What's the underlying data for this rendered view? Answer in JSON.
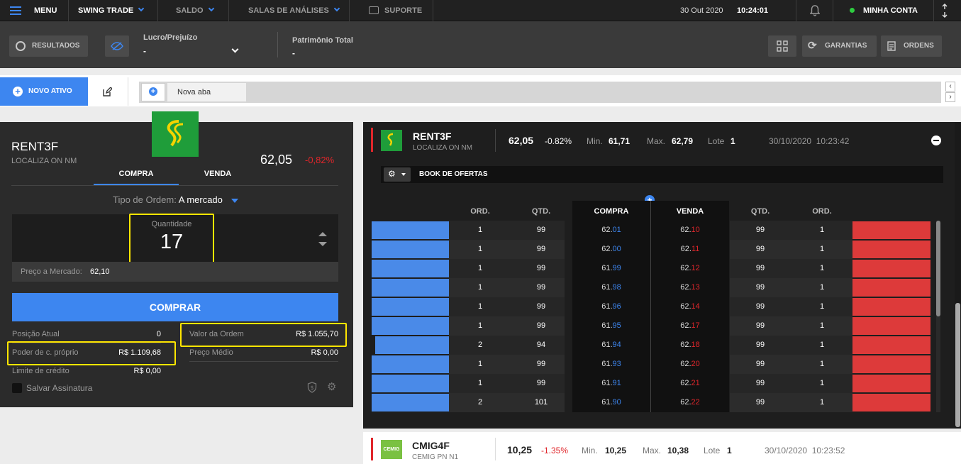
{
  "topbar": {
    "menu_label": "MENU",
    "mode_label": "SWING TRADE",
    "saldo_label": "SALDO",
    "salas_label": "SALAS DE ANÁLISES",
    "suporte_label": "SUPORTE",
    "date": "30 Out 2020",
    "time": "10:24:01",
    "account_label": "MINHA CONTA",
    "status_color": "#2ecc40"
  },
  "bar2": {
    "resultados_label": "RESULTADOS",
    "lucro_label": "Lucro/Prejuízo",
    "lucro_value": "-",
    "patrimonio_label": "Patrimônio Total",
    "patrimonio_value": "-",
    "garantias_label": "GARANTIAS",
    "ordens_label": "ORDENS"
  },
  "tabs": {
    "novo_ativo_label": "NOVO ATIVO",
    "tab_label": "Nova aba"
  },
  "order": {
    "ticker": "RENT3F",
    "company": "LOCALIZA ON NM",
    "price": "62,05",
    "change": "-0,82%",
    "tab_buy": "COMPRA",
    "tab_sell": "VENDA",
    "order_type_label": "Tipo de Ordem:",
    "order_type_value": "A mercado",
    "quantity_label": "Quantidade",
    "quantity_value": "17",
    "market_price_label": "Preço a Mercado:",
    "market_price_value": "62,10",
    "buy_button": "COMPRAR",
    "posicao_label": "Posição Atual",
    "posicao_value": "0",
    "valor_label": "Valor da Ordem",
    "valor_value": "R$ 1.055,70",
    "poder_label": "Poder de c. próprio",
    "poder_value": "R$ 1.109,68",
    "preco_medio_label": "Preço Médio",
    "preco_medio_value": "R$ 0,00",
    "limite_label": "Limite de crédito",
    "limite_value": "R$ 0,00",
    "salvar_label": "Salvar Assinatura"
  },
  "book": {
    "ticker": "RENT3F",
    "company": "LOCALIZA ON NM",
    "price": "62,05",
    "change": "-0.82%",
    "min_label": "Min.",
    "min_value": "61,71",
    "max_label": "Max.",
    "max_value": "62,79",
    "lote_label": "Lote",
    "lote_value": "1",
    "datetime": "30/10/2020  10:23:42",
    "title": "BOOK DE OFERTAS",
    "headers": {
      "ord_l": "ORD.",
      "qtd_l": "QTD.",
      "compra": "COMPRA",
      "venda": "VENDA",
      "qtd_r": "QTD.",
      "ord_r": "ORD."
    },
    "rows": [
      {
        "ord_l": "1",
        "qtd_l": "99",
        "buy_int": "62.",
        "buy_dec": "01",
        "sell_int": "62.",
        "sell_dec": "10",
        "qtd_r": "99",
        "ord_r": "1",
        "buy_depth": 1.0
      },
      {
        "ord_l": "1",
        "qtd_l": "99",
        "buy_int": "62.",
        "buy_dec": "00",
        "sell_int": "62.",
        "sell_dec": "11",
        "qtd_r": "99",
        "ord_r": "1",
        "buy_depth": 1.0
      },
      {
        "ord_l": "1",
        "qtd_l": "99",
        "buy_int": "61.",
        "buy_dec": "99",
        "sell_int": "62.",
        "sell_dec": "12",
        "qtd_r": "99",
        "ord_r": "1",
        "buy_depth": 1.0
      },
      {
        "ord_l": "1",
        "qtd_l": "99",
        "buy_int": "61.",
        "buy_dec": "98",
        "sell_int": "62.",
        "sell_dec": "13",
        "qtd_r": "99",
        "ord_r": "1",
        "buy_depth": 1.0
      },
      {
        "ord_l": "1",
        "qtd_l": "99",
        "buy_int": "61.",
        "buy_dec": "96",
        "sell_int": "62.",
        "sell_dec": "14",
        "qtd_r": "99",
        "ord_r": "1",
        "buy_depth": 1.0
      },
      {
        "ord_l": "1",
        "qtd_l": "99",
        "buy_int": "61.",
        "buy_dec": "95",
        "sell_int": "62.",
        "sell_dec": "17",
        "qtd_r": "99",
        "ord_r": "1",
        "buy_depth": 1.0
      },
      {
        "ord_l": "2",
        "qtd_l": "94",
        "buy_int": "61.",
        "buy_dec": "94",
        "sell_int": "62.",
        "sell_dec": "18",
        "qtd_r": "99",
        "ord_r": "1",
        "buy_depth": 0.95
      },
      {
        "ord_l": "1",
        "qtd_l": "99",
        "buy_int": "61.",
        "buy_dec": "93",
        "sell_int": "62.",
        "sell_dec": "20",
        "qtd_r": "99",
        "ord_r": "1",
        "buy_depth": 1.0
      },
      {
        "ord_l": "1",
        "qtd_l": "99",
        "buy_int": "61.",
        "buy_dec": "91",
        "sell_int": "62.",
        "sell_dec": "21",
        "qtd_r": "99",
        "ord_r": "1",
        "buy_depth": 1.0
      },
      {
        "ord_l": "2",
        "qtd_l": "101",
        "buy_int": "61.",
        "buy_dec": "90",
        "sell_int": "62.",
        "sell_dec": "22",
        "qtd_r": "99",
        "ord_r": "1",
        "buy_depth": 1.0
      }
    ]
  },
  "cmig": {
    "ticker": "CMIG4F",
    "company": "CEMIG PN N1",
    "logo_text": "CEMIG",
    "price": "10,25",
    "change": "-1.35%",
    "min_label": "Min.",
    "min_value": "10,25",
    "max_label": "Max.",
    "max_value": "10,38",
    "lote_label": "Lote",
    "lote_value": "1",
    "datetime": "30/10/2020  10:23:52"
  },
  "colors": {
    "accent_blue": "#3d86f0",
    "negative_red": "#e0262b",
    "buy_bar": "#4a8ae8",
    "sell_bar": "#dd3a3a",
    "highlight": "#ffe600"
  }
}
